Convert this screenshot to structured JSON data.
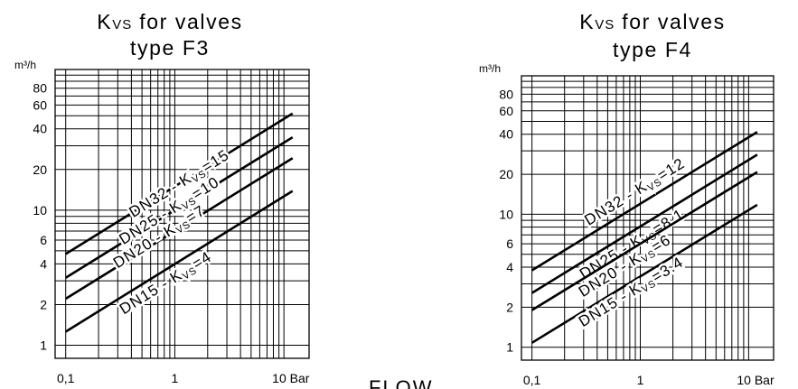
{
  "footer_text": "FLOW",
  "colors": {
    "ink": "#000000",
    "background": "#ffffff"
  },
  "chart_data": [
    {
      "type": "line",
      "title_main": "K",
      "title_sub": "VS",
      "title_rest": " for valves",
      "title_line2": "type F3",
      "yunit": "m³/h",
      "xunit": "Bar",
      "x_scale": "log",
      "y_scale": "log",
      "xlim": [
        0.08,
        17
      ],
      "ylim": [
        0.8,
        110
      ],
      "x_ticks": [
        {
          "v": 0.1,
          "label": "0,1"
        },
        {
          "v": 1,
          "label": "1"
        },
        {
          "v": 10,
          "label": "10 Bar"
        }
      ],
      "y_ticks": [
        {
          "v": 1,
          "label": "1"
        },
        {
          "v": 2,
          "label": "2"
        },
        {
          "v": 4,
          "label": "4"
        },
        {
          "v": 6,
          "label": "6"
        },
        {
          "v": 10,
          "label": "10"
        },
        {
          "v": 20,
          "label": "20"
        },
        {
          "v": 40,
          "label": "40"
        },
        {
          "v": 60,
          "label": "60"
        },
        {
          "v": 80,
          "label": "80"
        }
      ],
      "grid": true,
      "series": [
        {
          "name": "DN32",
          "label_text": "DN32 - K",
          "label_sub": "VS",
          "label_value": "=15",
          "kvs": 15,
          "x": [
            0.1,
            12
          ],
          "y": [
            4.74,
            51.96
          ]
        },
        {
          "name": "DN25",
          "label_text": "DN25 - K",
          "label_sub": "VS",
          "label_value": "=10",
          "kvs": 10,
          "x": [
            0.1,
            12
          ],
          "y": [
            3.16,
            34.64
          ]
        },
        {
          "name": "DN20",
          "label_text": "DN20 - K",
          "label_sub": "VS",
          "label_value": "=7",
          "kvs": 7,
          "x": [
            0.1,
            12
          ],
          "y": [
            2.21,
            24.25
          ]
        },
        {
          "name": "DN15",
          "label_text": "DN15 - K",
          "label_sub": "VS",
          "label_value": "=4",
          "kvs": 4,
          "x": [
            0.1,
            12
          ],
          "y": [
            1.26,
            13.86
          ]
        }
      ]
    },
    {
      "type": "line",
      "title_main": "K",
      "title_sub": "VS",
      "title_rest": " for valves",
      "title_line2": "type F4",
      "yunit": "m³/h",
      "xunit": "Bar",
      "x_scale": "log",
      "y_scale": "log",
      "xlim": [
        0.08,
        17
      ],
      "ylim": [
        0.8,
        110
      ],
      "x_ticks": [
        {
          "v": 0.1,
          "label": "0,1"
        },
        {
          "v": 1,
          "label": "1"
        },
        {
          "v": 10,
          "label": "10 Bar"
        }
      ],
      "y_ticks": [
        {
          "v": 1,
          "label": "1"
        },
        {
          "v": 2,
          "label": "2"
        },
        {
          "v": 4,
          "label": "4"
        },
        {
          "v": 6,
          "label": "6"
        },
        {
          "v": 10,
          "label": "10"
        },
        {
          "v": 20,
          "label": "20"
        },
        {
          "v": 40,
          "label": "40"
        },
        {
          "v": 60,
          "label": "60"
        },
        {
          "v": 80,
          "label": "80"
        }
      ],
      "grid": true,
      "series": [
        {
          "name": "DN32",
          "label_text": "DN32 - K",
          "label_sub": "VS",
          "label_value": "=12",
          "kvs": 12,
          "x": [
            0.1,
            12
          ],
          "y": [
            3.79,
            41.57
          ]
        },
        {
          "name": "DN25",
          "label_text": "DN25 - K",
          "label_sub": "VS",
          "label_value": "=8.1",
          "kvs": 8.1,
          "x": [
            0.1,
            12
          ],
          "y": [
            2.56,
            28.06
          ]
        },
        {
          "name": "DN20",
          "label_text": "DN20 - K",
          "label_sub": "VS",
          "label_value": "=6",
          "kvs": 6,
          "x": [
            0.1,
            12
          ],
          "y": [
            1.9,
            20.78
          ]
        },
        {
          "name": "DN15",
          "label_text": "DN15 - K",
          "label_sub": "VS",
          "label_value": "=3.4",
          "kvs": 3.4,
          "x": [
            0.1,
            12
          ],
          "y": [
            1.08,
            11.78
          ]
        }
      ]
    }
  ]
}
